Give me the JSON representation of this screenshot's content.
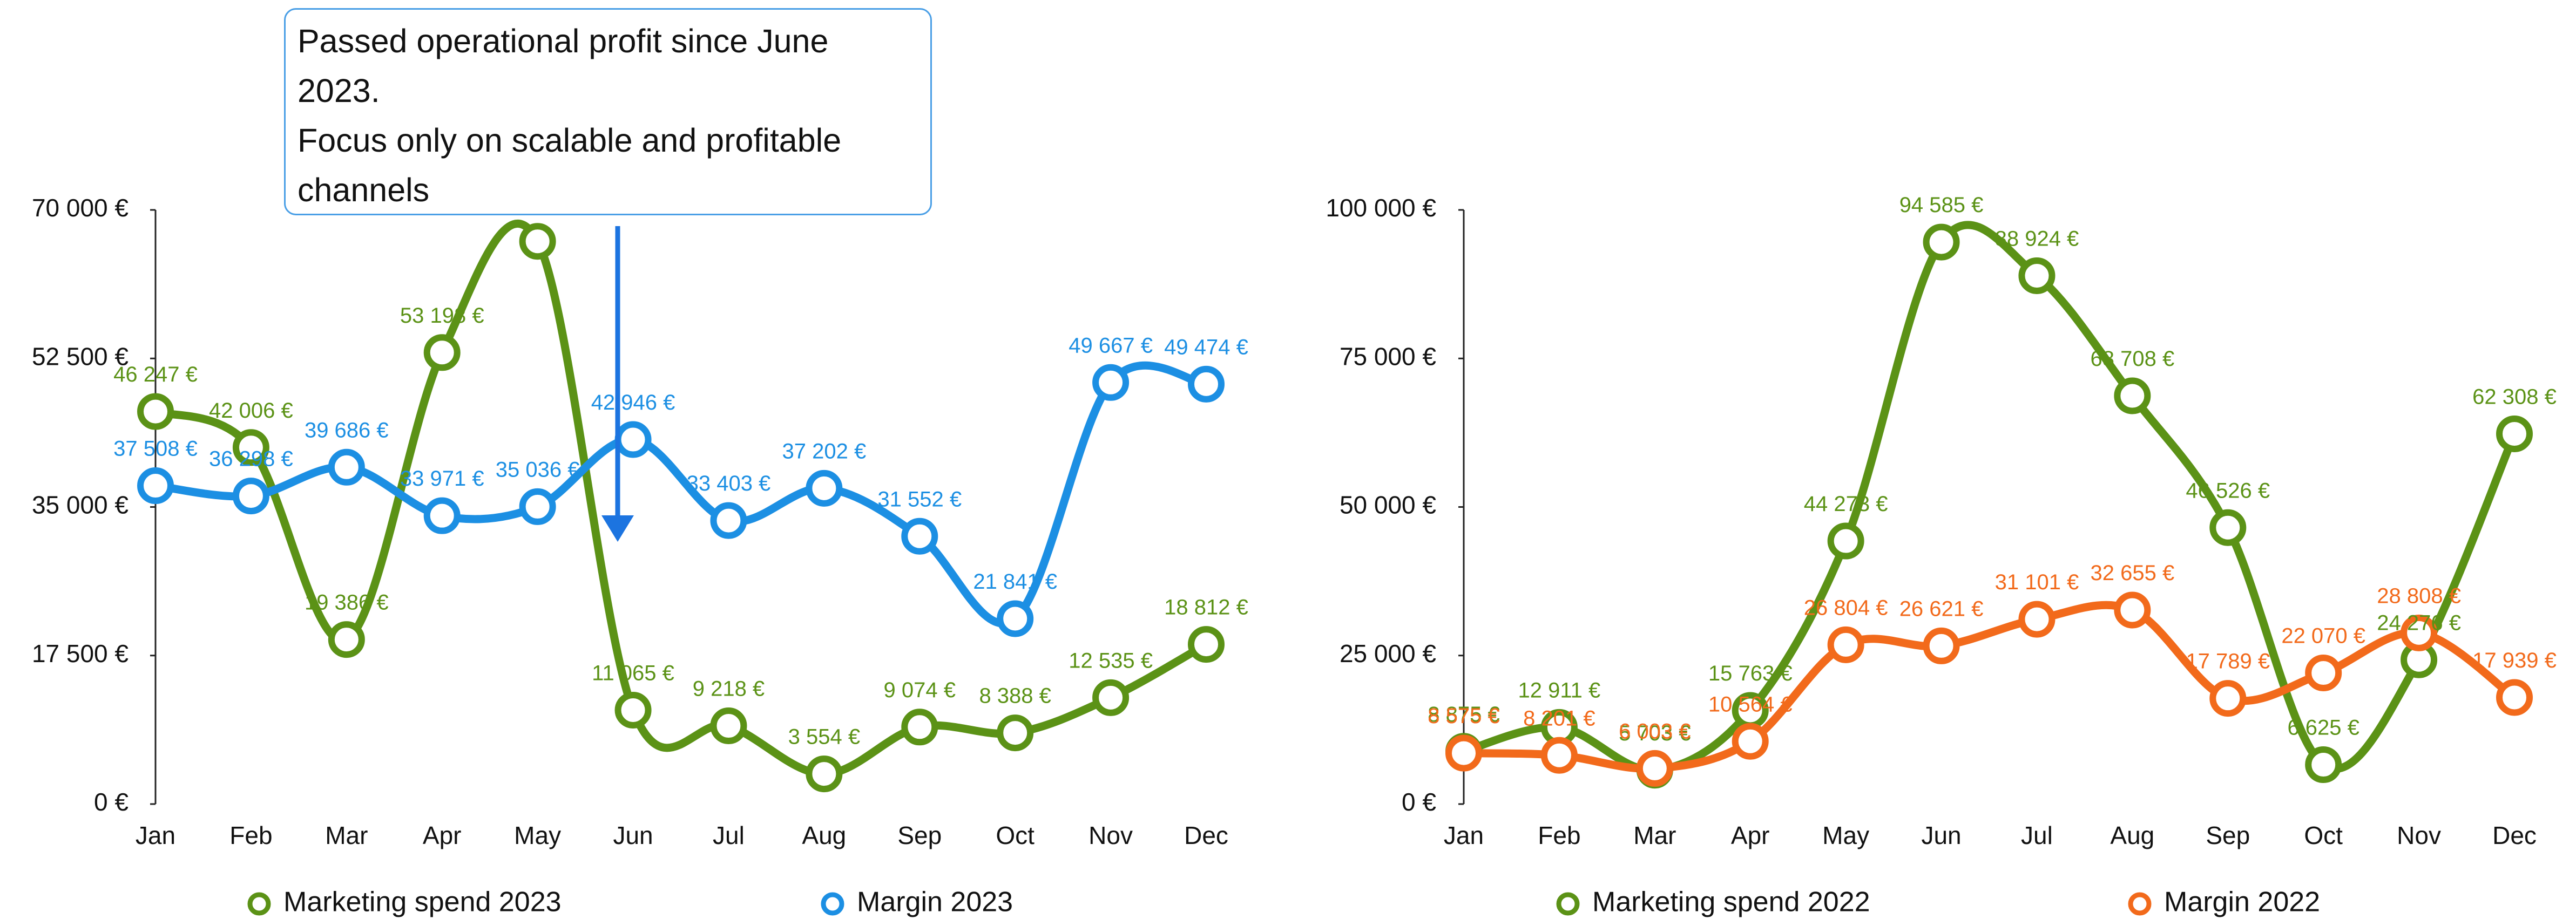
{
  "chart_data": [
    {
      "type": "line",
      "annotation": "Passed operational profit since June 2023.\nFocus only on scalable and profitable channels",
      "categories": [
        "Jan",
        "Feb",
        "Mar",
        "Apr",
        "May",
        "Jun",
        "Jul",
        "Aug",
        "Sep",
        "Oct",
        "Nov",
        "Dec"
      ],
      "ylim": [
        0,
        70000
      ],
      "yticks": [
        {
          "value": 0,
          "label": "0 €"
        },
        {
          "value": 17500,
          "label": "17 500 €"
        },
        {
          "value": 35000,
          "label": "35 000 €"
        },
        {
          "value": 52500,
          "label": "52 500 €"
        },
        {
          "value": 70000,
          "label": "70 000 €"
        }
      ],
      "legend": "bottom",
      "series": [
        {
          "name": "Marketing spend 2023",
          "color": "#5b9216",
          "values": [
            46247,
            42006,
            19386,
            53198,
            66300,
            11065,
            9218,
            3554,
            9074,
            8388,
            12535,
            18812
          ],
          "value_labels": [
            "46 247 €",
            "42 006 €",
            "19 386 €",
            "53 198 €",
            null,
            "11 065 €",
            "9 218 €",
            "3 554 €",
            "9 074 €",
            "8 388 €",
            "12 535 €",
            "18 812 €"
          ]
        },
        {
          "name": "Margin 2023",
          "color": "#1c8fe3",
          "values": [
            37508,
            36298,
            39686,
            33971,
            35036,
            42946,
            33403,
            37202,
            31552,
            21841,
            49667,
            49474
          ],
          "value_labels": [
            "37 508 €",
            "36 298 €",
            "39 686 €",
            "33 971 €",
            "35 036 €",
            "42 946 €",
            "33 403 €",
            "37 202 €",
            "31 552 €",
            "21 841 €",
            "49 667 €",
            "49 474 €"
          ]
        }
      ]
    },
    {
      "type": "line",
      "categories": [
        "Jan",
        "Feb",
        "Mar",
        "Apr",
        "May",
        "Jun",
        "Jul",
        "Aug",
        "Sep",
        "Oct",
        "Nov",
        "Dec"
      ],
      "ylim": [
        0,
        100000
      ],
      "yticks": [
        {
          "value": 0,
          "label": "0 €"
        },
        {
          "value": 25000,
          "label": "25 000 €"
        },
        {
          "value": 50000,
          "label": "50 000 €"
        },
        {
          "value": 75000,
          "label": "75 000 €"
        },
        {
          "value": 100000,
          "label": "100 000 €"
        }
      ],
      "legend": "bottom",
      "series": [
        {
          "name": "Marketing spend 2022",
          "color": "#5b9216",
          "values": [
            8875,
            12911,
            5703,
            15763,
            44273,
            94585,
            88924,
            68708,
            46526,
            6625,
            24276,
            62308
          ],
          "value_labels": [
            "8 875 €",
            "12 911 €",
            "5 703 €",
            "15 763 €",
            "44 273 €",
            "94 585 €",
            "88 924 €",
            "68 708 €",
            "46 526 €",
            "6 625 €",
            "24 276 €",
            "62 308 €"
          ]
        },
        {
          "name": "Margin 2022",
          "color": "#f26a1b",
          "values": [
            8575,
            8201,
            6003,
            10564,
            26804,
            26621,
            31101,
            32655,
            17789,
            22070,
            28808,
            17939
          ],
          "value_labels": [
            "8 575 €",
            "8 201 €",
            "6 003 €",
            "10 564 €",
            "26 804 €",
            "26 621 €",
            "31 101 €",
            "32 655 €",
            "17 789 €",
            "22 070 €",
            "28 808 €",
            "17 939 €"
          ]
        }
      ]
    }
  ]
}
